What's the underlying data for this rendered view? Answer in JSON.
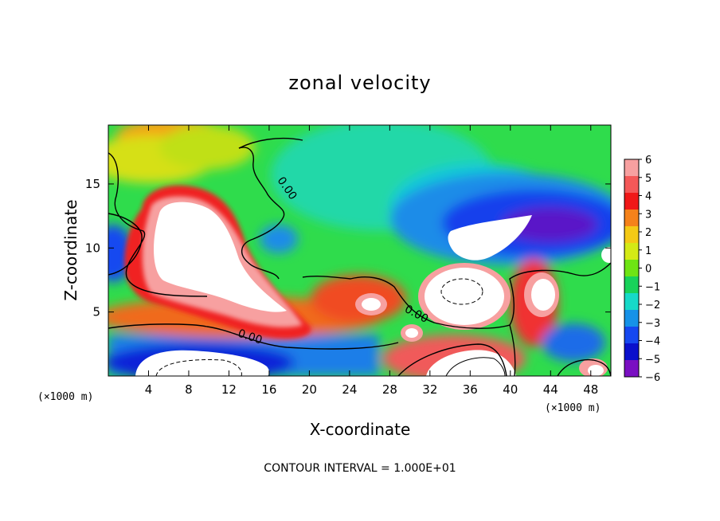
{
  "chart_data": {
    "type": "heatmap",
    "title": "zonal velocity",
    "xlabel": "X-coordinate",
    "ylabel": "Z-coordinate",
    "x_unit": "(×1000 m)",
    "y_unit": "(×1000 m)",
    "xlim": [
      0,
      50
    ],
    "ylim": [
      0,
      19.6
    ],
    "x_ticks": [
      4,
      8,
      12,
      16,
      20,
      24,
      28,
      32,
      36,
      40,
      44,
      48
    ],
    "y_ticks": [
      5,
      10,
      15
    ],
    "colorbar": {
      "levels": [
        6,
        5,
        4,
        3,
        2,
        1,
        0,
        -1,
        -2,
        -3,
        -4,
        -5,
        -6
      ],
      "labels": [
        "6",
        "5",
        "4",
        "3",
        "2",
        "1",
        "0",
        "−1",
        "−2",
        "−3",
        "−4",
        "−5",
        "−6"
      ],
      "colors": [
        "#f7a0a0",
        "#f45858",
        "#f01818",
        "#f5821a",
        "#f4c915",
        "#d4ea16",
        "#6ee414",
        "#18d25a",
        "#16d9c8",
        "#1692e8",
        "#1648f0",
        "#0a10cc",
        "#7a0fc2"
      ]
    },
    "contour_labels": [
      {
        "text": "0.00",
        "x": 17.5,
        "y": 14.5,
        "angle": 55
      },
      {
        "text": "0.00",
        "x": 30.5,
        "y": 4.6,
        "angle": 28
      },
      {
        "text": "0.00",
        "x": 14.0,
        "y": 2.8,
        "angle": 18
      }
    ],
    "field_regions": [
      {
        "name": "background",
        "value": -0.5
      },
      {
        "name": "upper-left-warm",
        "value": 2.5,
        "x": [
          0,
          11
        ],
        "z": [
          16.5,
          19.6
        ]
      },
      {
        "name": "top-center-warm",
        "value": 3.5,
        "x": [
          4,
          10
        ],
        "z": [
          18.4,
          19.6
        ]
      },
      {
        "name": "left-jet-edge",
        "value": -4.5,
        "x": [
          0,
          2.5
        ],
        "z": [
          8.5,
          11.5
        ]
      },
      {
        "name": "left-jet-core",
        "value": -6.2,
        "x": [
          0,
          0.8
        ],
        "z": [
          9.5,
          10.5
        ]
      },
      {
        "name": "upper-left-red-ring",
        "value": 4.5,
        "x": [
          2.5,
          16
        ],
        "z": [
          3,
          15.4
        ]
      },
      {
        "name": "upper-left-saturated",
        "value": 7,
        "x": [
          4,
          14
        ],
        "z": [
          5.5,
          14.5
        ]
      },
      {
        "name": "lower-band-warm",
        "value": 2.5,
        "x": [
          2,
          30
        ],
        "z": [
          1.8,
          5.5
        ]
      },
      {
        "name": "lower-blue-band",
        "value": -4,
        "x": [
          0,
          28
        ],
        "z": [
          0,
          2.5
        ]
      },
      {
        "name": "bottom-left-saturated",
        "value": -7,
        "x": [
          3,
          14
        ],
        "z": [
          0,
          2
        ]
      },
      {
        "name": "right-upper-blue",
        "value": -4.5,
        "x": [
          28,
          50
        ],
        "z": [
          9,
          17
        ]
      },
      {
        "name": "right-upper-saturated",
        "value": -7,
        "x": [
          34,
          43
        ],
        "z": [
          10.2,
          12.4
        ]
      },
      {
        "name": "center-right-saturated",
        "value": 7,
        "x": [
          31,
          40
        ],
        "z": [
          4.3,
          8.2
        ]
      },
      {
        "name": "right-red-column",
        "value": 5,
        "x": [
          40,
          44
        ],
        "z": [
          3,
          8.5
        ]
      },
      {
        "name": "bottom-center-saturated",
        "value": 7,
        "x": [
          31,
          40
        ],
        "z": [
          0,
          2
        ]
      },
      {
        "name": "right-edge-saturated",
        "value": 7,
        "x": [
          49,
          50
        ],
        "z": [
          9.3,
          10.5
        ]
      }
    ],
    "grid": false,
    "note": "CONTOUR INTERVAL = 1.000E+01"
  }
}
